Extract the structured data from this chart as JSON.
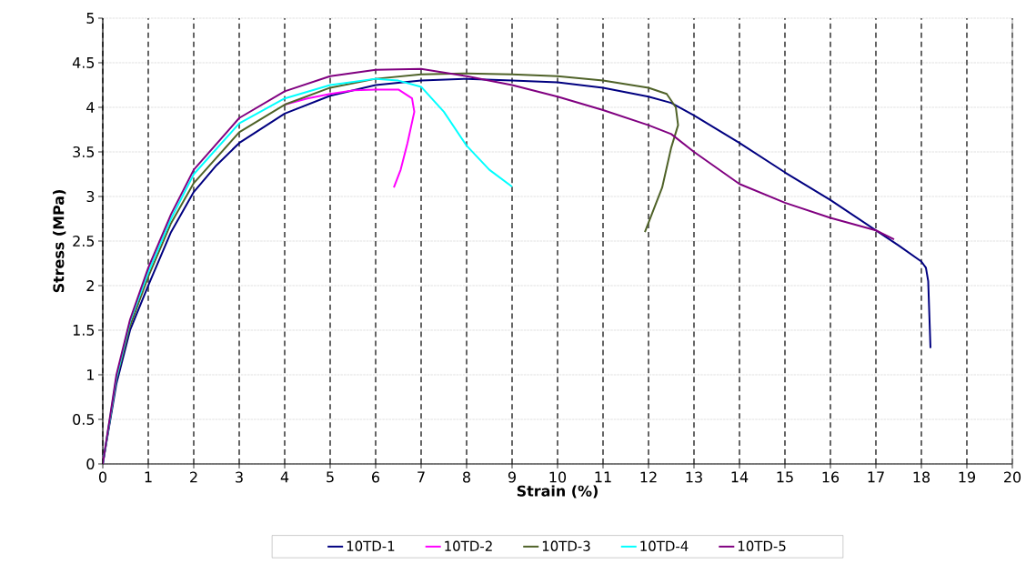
{
  "chart_data": {
    "type": "line",
    "xlabel": "Strain (%)",
    "ylabel": "Stress (MPa)",
    "xlim": [
      0,
      20
    ],
    "ylim": [
      0,
      5
    ],
    "xticks": [
      0,
      1,
      2,
      3,
      4,
      5,
      6,
      7,
      8,
      9,
      10,
      11,
      12,
      13,
      14,
      15,
      16,
      17,
      18,
      19,
      20
    ],
    "yticks": [
      0,
      0.5,
      1,
      1.5,
      2,
      2.5,
      3,
      3.5,
      4,
      4.5,
      5
    ],
    "grid": true,
    "legend": "bottom",
    "series": [
      {
        "name": "10TD-1",
        "color": "#000080",
        "x": [
          0,
          0.3,
          0.6,
          1,
          1.5,
          2,
          2.5,
          3,
          4,
          5,
          6,
          7,
          8,
          9,
          10,
          11,
          12,
          12.5,
          13,
          14,
          15,
          16,
          17,
          17.5,
          18,
          18.1,
          18.15,
          18.2
        ],
        "values": [
          0,
          0.9,
          1.5,
          2.0,
          2.6,
          3.05,
          3.35,
          3.6,
          3.93,
          4.13,
          4.25,
          4.3,
          4.32,
          4.3,
          4.28,
          4.22,
          4.12,
          4.05,
          3.91,
          3.6,
          3.27,
          2.96,
          2.62,
          2.45,
          2.27,
          2.2,
          2.05,
          1.3
        ]
      },
      {
        "name": "10TD-2",
        "color": "#ff00ff",
        "x": [
          4,
          4.5,
          5,
          5.5,
          6,
          6.5,
          6.8,
          6.85,
          6.7,
          6.55,
          6.4
        ],
        "values": [
          4.03,
          4.1,
          4.15,
          4.19,
          4.2,
          4.2,
          4.1,
          3.95,
          3.6,
          3.3,
          3.1
        ]
      },
      {
        "name": "10TD-3",
        "color": "#4f6228",
        "x": [
          0,
          0.3,
          0.6,
          1,
          1.5,
          2,
          3,
          4,
          5,
          6,
          7,
          8,
          9,
          10,
          11,
          12,
          12.4,
          12.6,
          12.65,
          12.5,
          12.3,
          11.92
        ],
        "values": [
          0,
          0.95,
          1.55,
          2.1,
          2.7,
          3.15,
          3.72,
          4.03,
          4.22,
          4.32,
          4.37,
          4.38,
          4.37,
          4.35,
          4.3,
          4.22,
          4.15,
          4.0,
          3.8,
          3.55,
          3.1,
          2.6
        ]
      },
      {
        "name": "10TD-4",
        "color": "#00ffff",
        "x": [
          0,
          0.3,
          0.6,
          1,
          1.5,
          2,
          3,
          4,
          5,
          6,
          6.5,
          7,
          7.5,
          8,
          8.5,
          9
        ],
        "values": [
          0,
          0.97,
          1.6,
          2.15,
          2.75,
          3.25,
          3.82,
          4.1,
          4.25,
          4.32,
          4.3,
          4.23,
          3.95,
          3.57,
          3.3,
          3.11
        ]
      },
      {
        "name": "10TD-5",
        "color": "#800080",
        "x": [
          0,
          0.3,
          0.6,
          1,
          1.5,
          2,
          3,
          4,
          5,
          6,
          7,
          8,
          9,
          10,
          11,
          12,
          12.5,
          13,
          14,
          15,
          16,
          17,
          17.4
        ],
        "values": [
          0,
          1.0,
          1.62,
          2.2,
          2.8,
          3.3,
          3.88,
          4.18,
          4.35,
          4.42,
          4.43,
          4.35,
          4.25,
          4.12,
          3.97,
          3.8,
          3.7,
          3.5,
          3.14,
          2.93,
          2.76,
          2.62,
          2.52
        ]
      }
    ]
  }
}
